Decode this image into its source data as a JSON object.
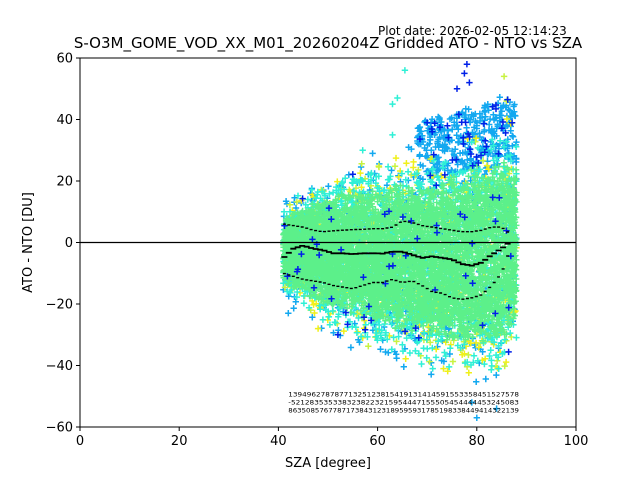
{
  "plot_date": "Plot date: 2026-02-05 12:14:23",
  "chart_data": {
    "type": "scatter",
    "title": "S-O3M_GOME_VOD_XX_M01_20260204Z Gridded ATO - NTO vs SZA",
    "xlabel": "SZA [degree]",
    "ylabel": "ATO - NTO [DU]",
    "xlim": [
      0,
      100
    ],
    "ylim": [
      -60,
      60
    ],
    "xticks": [
      "0",
      "20",
      "40",
      "60",
      "80",
      "100"
    ],
    "yticks": [
      "−60",
      "−40",
      "−20",
      "0",
      "20",
      "40",
      "60"
    ],
    "grid": false,
    "reference_line_y": 0,
    "colors": {
      "dense": "#5cf08a",
      "cyan": "#2ff0d6",
      "lightblue": "#12a8f0",
      "blue": "#0020e8",
      "yellow": "#f0f01a",
      "lime": "#c8f240",
      "stats": "#000000"
    },
    "envelope": {
      "sza": [
        41,
        45,
        50,
        55,
        60,
        65,
        70,
        75,
        80,
        85,
        88
      ],
      "upper": [
        8,
        12,
        15,
        17,
        18,
        20,
        20,
        22,
        25,
        28,
        25
      ],
      "lower": [
        -13,
        -17,
        -21,
        -24,
        -27,
        -29,
        -31,
        -33,
        -35,
        -33,
        -25
      ]
    },
    "stats_lines": {
      "sza": [
        41,
        43,
        45,
        47,
        49,
        51,
        53,
        55,
        57,
        59,
        61,
        63,
        65,
        67,
        69,
        71,
        73,
        75,
        77,
        79,
        81,
        83,
        85,
        86.5
      ],
      "upper": [
        6,
        5.5,
        5,
        4,
        3.5,
        3.8,
        4,
        4.2,
        4.3,
        4.5,
        4.5,
        5,
        7,
        6.5,
        5.5,
        5,
        4.5,
        4,
        3.5,
        3.5,
        4,
        5,
        5,
        3
      ],
      "mean": [
        -5,
        -2,
        -1,
        -2,
        -2.5,
        -3.5,
        -3.5,
        -3.8,
        -3.5,
        -3.5,
        -3.6,
        -3,
        -3,
        -4,
        -5,
        -4.5,
        -5,
        -5.5,
        -7,
        -7.5,
        -6.5,
        -4,
        -2,
        0
      ],
      "lower": [
        -10,
        -11,
        -12,
        -12.5,
        -13,
        -14,
        -14.5,
        -15,
        -14,
        -13,
        -13,
        -12,
        -13,
        -12.5,
        -14,
        -16,
        -16.5,
        -18,
        -18.5,
        -18,
        -17,
        -14,
        -10,
        -3
      ]
    },
    "stats_text_rows": [
      "13949627878771325123815419131414591553358451527578",
      "-5212835353383238223215954447155505454444453245083",
      "8635085767787173843123189595931785198338449414322139"
    ]
  }
}
